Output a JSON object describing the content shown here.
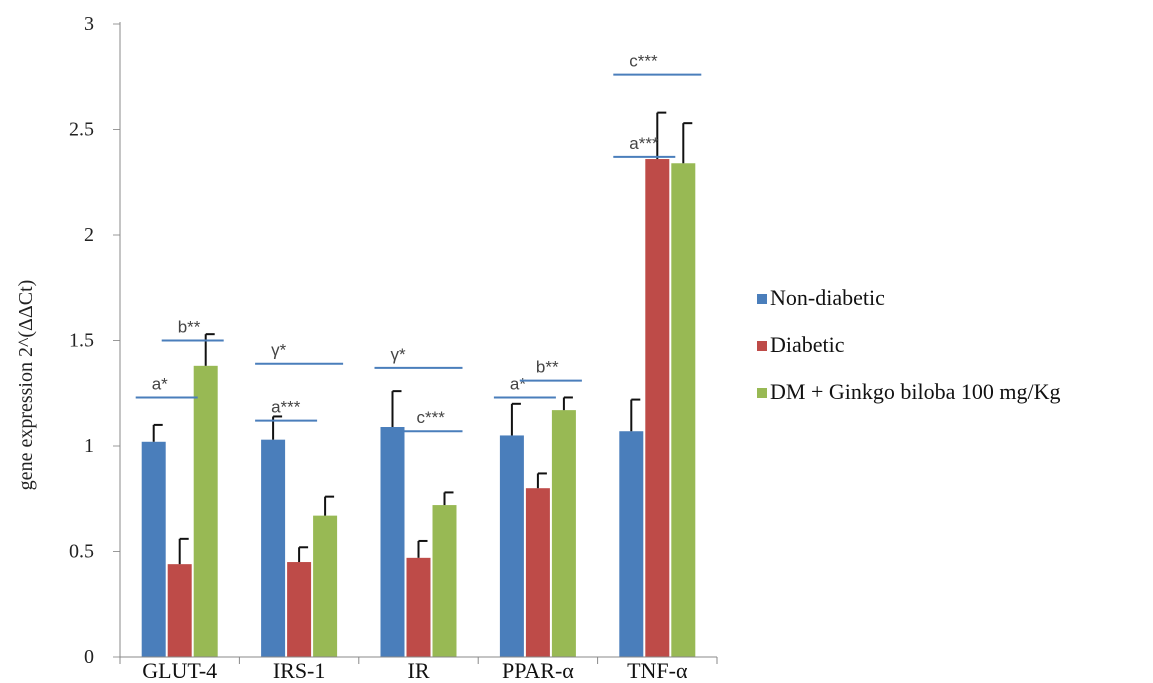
{
  "chart_data": {
    "type": "bar",
    "title": "",
    "xlabel": "",
    "ylabel": "gene expression 2^(ΔΔCt)",
    "ylim": [
      0,
      3
    ],
    "yticks": [
      "0",
      "0.5",
      "1",
      "1.5",
      "2",
      "2.5",
      "3"
    ],
    "grid": false,
    "legend_position": "right",
    "categories": [
      "GLUT-4",
      "IRS-1",
      "IR",
      "PPAR-α",
      "TNF-α"
    ],
    "series": [
      {
        "name": "Non-diabetic",
        "color": "#4a7ebb",
        "values": [
          1.02,
          1.03,
          1.09,
          1.05,
          1.07
        ],
        "errors": [
          0.08,
          0.11,
          0.17,
          0.15,
          0.15
        ]
      },
      {
        "name": "Diabetic",
        "color": "#be4b48",
        "values": [
          0.44,
          0.45,
          0.47,
          0.8,
          2.36
        ],
        "errors": [
          0.12,
          0.07,
          0.08,
          0.07,
          0.22
        ]
      },
      {
        "name": "DM + Ginkgo biloba 100 mg/Kg",
        "color": "#98b954",
        "values": [
          1.38,
          0.67,
          0.72,
          1.17,
          2.34
        ],
        "errors": [
          0.15,
          0.09,
          0.06,
          0.06,
          0.19
        ]
      }
    ],
    "annotations": [
      {
        "text": "a*",
        "category": "GLUT-4",
        "from": 0,
        "to": 1,
        "y": 1.23
      },
      {
        "text": "b**",
        "category": "GLUT-4",
        "from": 1,
        "to": 2,
        "y": 1.5
      },
      {
        "text": "γ*",
        "category": "IRS-1",
        "from": 0,
        "to": 2,
        "y": 1.39
      },
      {
        "text": "a***",
        "category": "IRS-1",
        "from": 0,
        "to": 1,
        "y": 1.12
      },
      {
        "text": "γ*",
        "category": "IR",
        "from": 0,
        "to": 2,
        "y": 1.37
      },
      {
        "text": "c***",
        "category": "IR",
        "from": 1,
        "to": 2,
        "y": 1.07
      },
      {
        "text": "a*",
        "category": "PPAR-α",
        "from": 0,
        "to": 1,
        "y": 1.23
      },
      {
        "text": "b**",
        "category": "PPAR-α",
        "from": 1,
        "to": 2,
        "y": 1.31
      },
      {
        "text": "c***",
        "category": "TNF-α",
        "from": 0,
        "to": 2,
        "y": 2.76
      },
      {
        "text": "a***",
        "category": "TNF-α",
        "from": 0,
        "to": 1,
        "y": 2.37
      }
    ]
  }
}
